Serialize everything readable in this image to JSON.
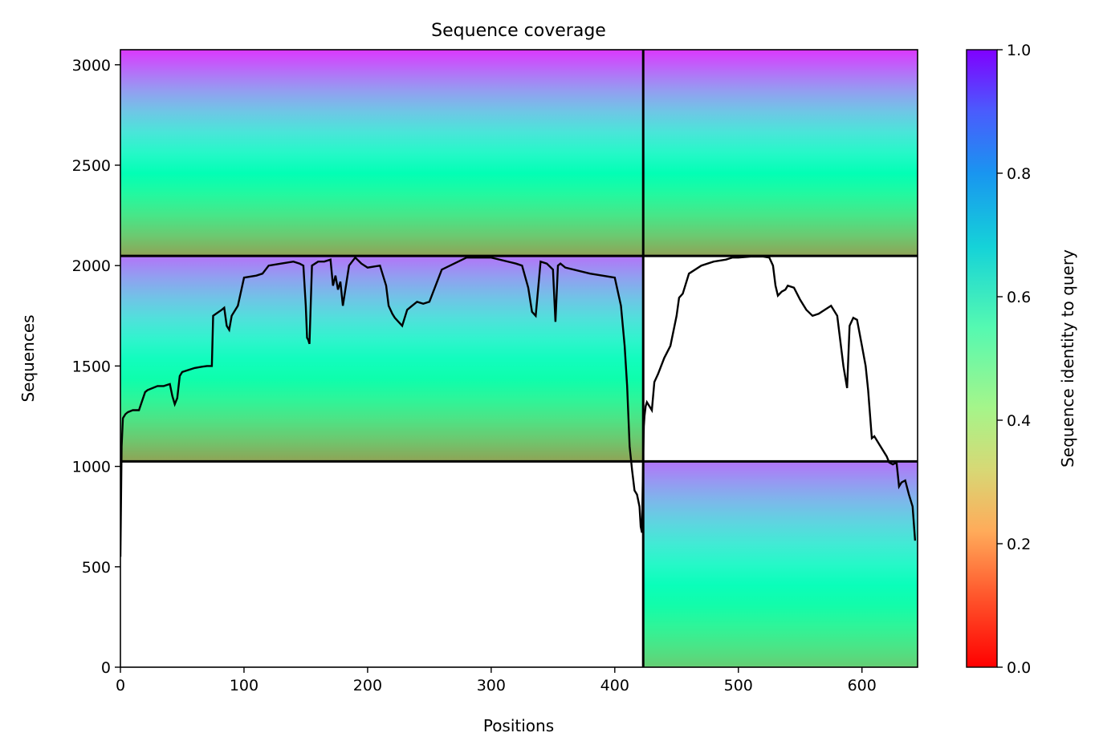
{
  "chart_data": {
    "type": "heatmap",
    "title": "Sequence coverage",
    "xlabel": "Positions",
    "ylabel": "Sequences",
    "xlim": [
      0,
      645
    ],
    "ylim": [
      0,
      3075
    ],
    "x_ticks": [
      0,
      100,
      200,
      300,
      400,
      500,
      600
    ],
    "y_ticks": [
      0,
      500,
      1000,
      1500,
      2000,
      2500,
      3000
    ],
    "grid": false,
    "colorbar": {
      "label": "Sequence identity to query",
      "colormap": "rainbow_r",
      "range": [
        0.0,
        1.0
      ],
      "ticks": [
        0.0,
        0.2,
        0.4,
        0.6,
        0.8,
        1.0
      ]
    },
    "divider_x": [
      423
    ],
    "divider_y": [
      1025,
      2048
    ],
    "blocks": [
      {
        "x": [
          0,
          423
        ],
        "y": [
          2048,
          3075
        ],
        "identity_top": 0.93,
        "identity_bottom": 0.22
      },
      {
        "x": [
          423,
          645
        ],
        "y": [
          2048,
          3075
        ],
        "identity_top": 0.93,
        "identity_bottom": 0.22
      },
      {
        "x": [
          0,
          423
        ],
        "y": [
          1025,
          2048
        ],
        "identity_top": 0.85,
        "identity_bottom": 0.22
      },
      {
        "x": [
          423,
          645
        ],
        "y": [
          0,
          1025
        ],
        "identity_top": 0.85,
        "identity_bottom": 0.3
      }
    ],
    "coverage_line": {
      "color": "#000000",
      "x": [
        0,
        1,
        2,
        4,
        6,
        10,
        15,
        20,
        22,
        30,
        35,
        40,
        42,
        44,
        46,
        48,
        50,
        55,
        60,
        65,
        70,
        74,
        75,
        82,
        84,
        86,
        88,
        90,
        95,
        100,
        110,
        115,
        120,
        130,
        140,
        145,
        148,
        150,
        151,
        152,
        153,
        155,
        160,
        165,
        170,
        172,
        174,
        176,
        178,
        180,
        185,
        190,
        195,
        200,
        210,
        215,
        217,
        220,
        222,
        225,
        228,
        232,
        236,
        240,
        245,
        250,
        260,
        280,
        300,
        320,
        325,
        330,
        333,
        336,
        340,
        345,
        350,
        352,
        354,
        356,
        360,
        380,
        390,
        400,
        405,
        408,
        410,
        412,
        414,
        416,
        418,
        420,
        421,
        422,
        423,
        423.5,
        424,
        425,
        426,
        430,
        432,
        435,
        440,
        445,
        450,
        452,
        455,
        460,
        470,
        480,
        490,
        495,
        500,
        510,
        520,
        525,
        528,
        530,
        532,
        535,
        538,
        540,
        545,
        550,
        555,
        560,
        565,
        570,
        575,
        580,
        585,
        588,
        590,
        593,
        596,
        600,
        603,
        605,
        608,
        610,
        615,
        620,
        622,
        625,
        628,
        630,
        632,
        635,
        638,
        641,
        643
      ],
      "y": [
        550,
        1100,
        1240,
        1260,
        1270,
        1280,
        1280,
        1370,
        1380,
        1400,
        1400,
        1410,
        1350,
        1310,
        1340,
        1450,
        1470,
        1480,
        1490,
        1495,
        1500,
        1500,
        1750,
        1780,
        1790,
        1700,
        1680,
        1750,
        1800,
        1940,
        1950,
        1960,
        2000,
        2010,
        2020,
        2010,
        2000,
        1800,
        1640,
        1630,
        1610,
        2000,
        2020,
        2020,
        2030,
        1900,
        1950,
        1880,
        1920,
        1800,
        2000,
        2040,
        2010,
        1990,
        2000,
        1900,
        1800,
        1760,
        1740,
        1720,
        1700,
        1780,
        1800,
        1820,
        1810,
        1820,
        1980,
        2040,
        2040,
        2010,
        2000,
        1890,
        1770,
        1750,
        2020,
        2010,
        1980,
        1720,
        2000,
        2010,
        1990,
        1960,
        1950,
        1940,
        1800,
        1600,
        1400,
        1100,
        980,
        880,
        860,
        800,
        700,
        670,
        1050,
        1200,
        1250,
        1300,
        1320,
        1280,
        1420,
        1460,
        1540,
        1600,
        1750,
        1840,
        1860,
        1960,
        2000,
        2020,
        2030,
        2040,
        2040,
        2045,
        2045,
        2040,
        2000,
        1900,
        1850,
        1870,
        1880,
        1900,
        1890,
        1830,
        1780,
        1750,
        1760,
        1780,
        1800,
        1750,
        1500,
        1390,
        1700,
        1740,
        1730,
        1600,
        1500,
        1380,
        1140,
        1150,
        1100,
        1050,
        1020,
        1010,
        1020,
        900,
        920,
        930,
        860,
        800,
        630
      ]
    }
  }
}
